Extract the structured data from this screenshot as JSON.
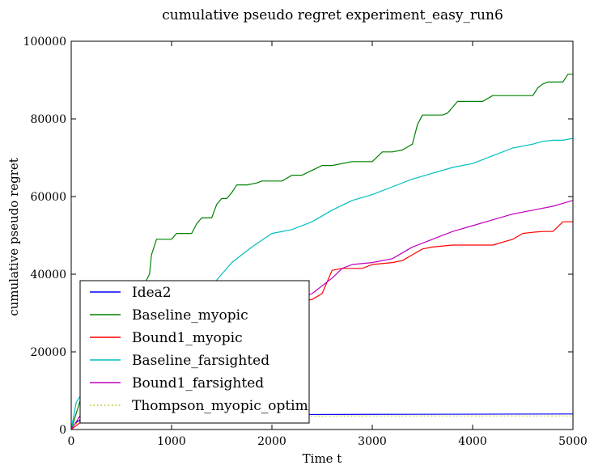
{
  "chart_data": {
    "type": "line",
    "title": "cumulative pseudo regret experiment_easy_run6",
    "xlabel": "Time t",
    "ylabel": "cumulative pseudo regret",
    "xlim": [
      0,
      5000
    ],
    "ylim": [
      0,
      100000
    ],
    "xticks": [
      0,
      1000,
      2000,
      3000,
      4000,
      5000
    ],
    "yticks": [
      0,
      20000,
      40000,
      60000,
      80000,
      100000
    ],
    "grid": false,
    "legend_position": "lower-left",
    "series": [
      {
        "name": "Idea2",
        "color": "#0000ff",
        "style": "solid",
        "x": [
          0,
          30,
          60,
          100,
          150,
          200,
          300,
          500,
          1000,
          2000,
          3000,
          4000,
          5000
        ],
        "y": [
          0,
          1200,
          2000,
          2700,
          3100,
          3300,
          3500,
          3700,
          3800,
          3850,
          3900,
          3950,
          4000
        ]
      },
      {
        "name": "Baseline_myopic",
        "color": "#008000",
        "style": "solid",
        "x": [
          0,
          60,
          120,
          200,
          300,
          400,
          500,
          600,
          700,
          780,
          800,
          850,
          900,
          950,
          1000,
          1050,
          1200,
          1250,
          1300,
          1400,
          1450,
          1500,
          1550,
          1600,
          1650,
          1750,
          1850,
          1900,
          2000,
          2100,
          2200,
          2300,
          2500,
          2600,
          2800,
          3000,
          3100,
          3200,
          3300,
          3400,
          3450,
          3500,
          3550,
          3700,
          3750,
          3800,
          3850,
          4000,
          4100,
          4200,
          4300,
          4400,
          4600,
          4650,
          4700,
          4750,
          4800,
          4900,
          4950,
          5000
        ],
        "y": [
          0,
          5000,
          10000,
          14000,
          20000,
          26000,
          30000,
          33000,
          36000,
          40000,
          45000,
          49000,
          49000,
          49000,
          49000,
          50500,
          50500,
          53000,
          54500,
          54500,
          58000,
          59500,
          59500,
          61000,
          63000,
          63000,
          63500,
          64000,
          64000,
          64000,
          65500,
          65500,
          68000,
          68000,
          69000,
          69000,
          71500,
          71500,
          72000,
          73500,
          78500,
          81000,
          81000,
          81000,
          81500,
          83000,
          84500,
          84500,
          84500,
          86000,
          86000,
          86000,
          86000,
          88000,
          89000,
          89500,
          89500,
          89500,
          91500,
          91500
        ]
      },
      {
        "name": "Bound1_myopic",
        "color": "#ff0000",
        "style": "solid",
        "x": [
          0,
          50,
          100,
          200,
          400,
          600,
          800,
          1000,
          1200,
          1400,
          1600,
          1800,
          1900,
          2000,
          2100,
          2200,
          2300,
          2400,
          2500,
          2550,
          2600,
          2700,
          2800,
          2900,
          3000,
          3200,
          3300,
          3400,
          3500,
          3600,
          3800,
          4000,
          4200,
          4400,
          4500,
          4600,
          4700,
          4800,
          4900,
          5000
        ],
        "y": [
          0,
          1000,
          2000,
          4000,
          8000,
          12000,
          16000,
          19000,
          21000,
          23000,
          25000,
          28000,
          30000,
          31000,
          32000,
          32500,
          33000,
          33500,
          35000,
          38000,
          41000,
          41500,
          41500,
          41500,
          42500,
          43000,
          43500,
          45000,
          46500,
          47000,
          47500,
          47500,
          47500,
          49000,
          50500,
          50800,
          51000,
          51000,
          53500,
          53500
        ]
      },
      {
        "name": "Baseline_farsighted",
        "color": "#00bfbf",
        "style": "solid",
        "x": [
          0,
          50,
          100,
          200,
          400,
          600,
          800,
          1000,
          1200,
          1400,
          1500,
          1600,
          1800,
          2000,
          2200,
          2400,
          2600,
          2800,
          3000,
          3200,
          3400,
          3600,
          3800,
          4000,
          4200,
          4400,
          4600,
          4700,
          4800,
          4900,
          5000
        ],
        "y": [
          0,
          7000,
          9000,
          12000,
          18000,
          23000,
          28000,
          32000,
          35000,
          37000,
          40000,
          43000,
          47000,
          50500,
          51500,
          53500,
          56500,
          59000,
          60500,
          62500,
          64500,
          66000,
          67500,
          68500,
          70500,
          72500,
          73500,
          74200,
          74500,
          74500,
          75000
        ]
      },
      {
        "name": "Bound1_farsighted",
        "color": "#bf00bf",
        "style": "solid",
        "x": [
          0,
          50,
          100,
          200,
          400,
          600,
          800,
          1000,
          1200,
          1400,
          1600,
          1800,
          2000,
          2200,
          2400,
          2600,
          2700,
          2800,
          3000,
          3200,
          3400,
          3600,
          3800,
          4000,
          4200,
          4400,
          4600,
          4800,
          5000
        ],
        "y": [
          0,
          2000,
          4000,
          7000,
          12000,
          16000,
          19000,
          22000,
          24000,
          26000,
          28000,
          30000,
          31500,
          33000,
          35000,
          39000,
          41500,
          42500,
          43000,
          44000,
          47000,
          49000,
          51000,
          52500,
          54000,
          55500,
          56500,
          57500,
          59000
        ]
      },
      {
        "name": "Thompson_myopic_optim",
        "color": "#bfbf00",
        "style": "dotted",
        "x": [
          0,
          30,
          60,
          100,
          150,
          200,
          300,
          500,
          1000,
          2000,
          3000,
          4000,
          5000
        ],
        "y": [
          0,
          1000,
          1800,
          2400,
          2800,
          3000,
          3200,
          3300,
          3400,
          3450,
          3500,
          3500,
          3500
        ]
      }
    ]
  }
}
